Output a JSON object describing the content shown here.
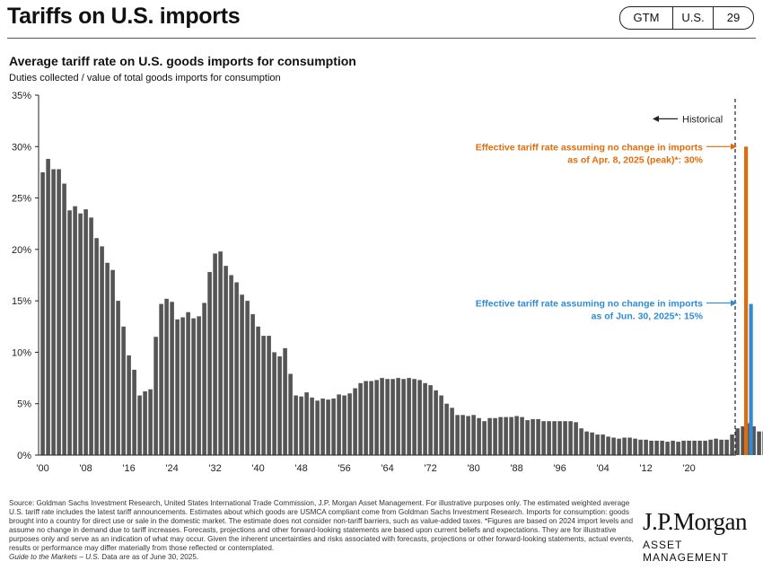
{
  "header": {
    "title": "Tariffs on U.S. imports",
    "badges": [
      "GTM",
      "U.S.",
      "29"
    ]
  },
  "chart_data": {
    "type": "bar",
    "title": "Average tariff rate on U.S. goods imports for consumption",
    "subtitle": "Duties collected / value of total goods imports for consumption",
    "ylim": [
      0,
      35
    ],
    "y_ticks": [
      "0%",
      "5%",
      "10%",
      "15%",
      "20%",
      "25%",
      "30%",
      "35%"
    ],
    "y_tick_values": [
      0,
      5,
      10,
      15,
      20,
      25,
      30,
      35
    ],
    "x_tick_labels": [
      "'00",
      "'08",
      "'16",
      "'24",
      "'32",
      "'40",
      "'48",
      "'56",
      "'64",
      "'72",
      "'80",
      "'88",
      "'96",
      "'04",
      "'12",
      "'20"
    ],
    "x_tick_years": [
      1900,
      1908,
      1916,
      1924,
      1932,
      1940,
      1948,
      1956,
      1964,
      1972,
      1980,
      1988,
      1996,
      2004,
      2012,
      2020
    ],
    "series": [
      {
        "x_start": 1900,
        "color": "#555555",
        "values": [
          27.5,
          28.8,
          27.8,
          27.8,
          26.4,
          23.8,
          24.2,
          23.5,
          23.9,
          23.1,
          21.1,
          20.3,
          18.7,
          18.0,
          15.0,
          12.5,
          9.7,
          8.3,
          5.8,
          6.2,
          6.4,
          11.5,
          14.7,
          15.2,
          14.9,
          13.2,
          13.4,
          13.9,
          13.3,
          13.5,
          14.8,
          17.8,
          19.6,
          19.8,
          18.4,
          17.5,
          16.8,
          15.6,
          15.0,
          13.7,
          12.5,
          11.6,
          11.6,
          10.0,
          9.6,
          10.4,
          7.9,
          5.8,
          5.7,
          6.1,
          5.6,
          5.3,
          5.5,
          5.4,
          5.5,
          5.9,
          5.8,
          6.0,
          6.5,
          7.0,
          7.2,
          7.2,
          7.3,
          7.5,
          7.4,
          7.4,
          7.5,
          7.4,
          7.5,
          7.4,
          7.3,
          7.0,
          6.8,
          6.3,
          5.8,
          5.0,
          4.6,
          3.9,
          3.9,
          3.8,
          3.9,
          3.6,
          3.3,
          3.6,
          3.6,
          3.7,
          3.7,
          3.7,
          3.8,
          3.7,
          3.4,
          3.5,
          3.5,
          3.3,
          3.3,
          3.3,
          3.3,
          3.3,
          3.3,
          3.2,
          2.6,
          2.3,
          2.2,
          2.0,
          2.0,
          1.8,
          1.7,
          1.6,
          1.7,
          1.7,
          1.6,
          1.5,
          1.5,
          1.4,
          1.4,
          1.4,
          1.3,
          1.4,
          1.3,
          1.4,
          1.4,
          1.4,
          1.4,
          1.4,
          1.5,
          1.6,
          1.5,
          1.5,
          2.0,
          2.6,
          2.8,
          3.1,
          2.8,
          2.3,
          2.3,
          3.8
        ]
      }
    ],
    "scenarios": [
      {
        "label_line1": "Effective tariff rate assuming no change in imports",
        "label_line2": "as of Apr. 8, 2025 (peak)*: 30%",
        "value": 30,
        "color": "#E36C0A"
      },
      {
        "label_line1": "Effective tariff rate assuming no change in imports",
        "label_line2": "as of Jun. 30, 2025*: 15%",
        "value": 14.7,
        "color": "#2E8BD5"
      }
    ],
    "historical_label": "Historical"
  },
  "footnote": {
    "text": "Source: Goldman Sachs Investment Research, United States International Trade Commission, J.P. Morgan Asset Management. For illustrative purposes only. The estimated weighted average U.S. tariff rate includes the latest tariff announcements. Estimates about which goods are USMCA compliant come from Goldman Sachs Investment Research. Imports for consumption: goods brought into a country for direct use or sale in the domestic market. The estimate does not consider non-tariff barriers, such as value-added taxes. *Figures are based on 2024 import levels and assume no change in demand due to tariff increases. Forecasts, projections and other forward-looking statements are based upon current beliefs and expectations. They are for illustrative purposes only and serve as an indication of what may occur. Given the inherent uncertainties and risks associated with forecasts, projections or other forward-looking statements, actual events, results or performance may differ materially from those reflected or contemplated.",
    "guide": "Guide to the Markets – U.S.",
    "asof": " Data are as of June 30, 2025."
  },
  "logo": {
    "name": "J.P.Morgan",
    "sub": "ASSET MANAGEMENT"
  }
}
